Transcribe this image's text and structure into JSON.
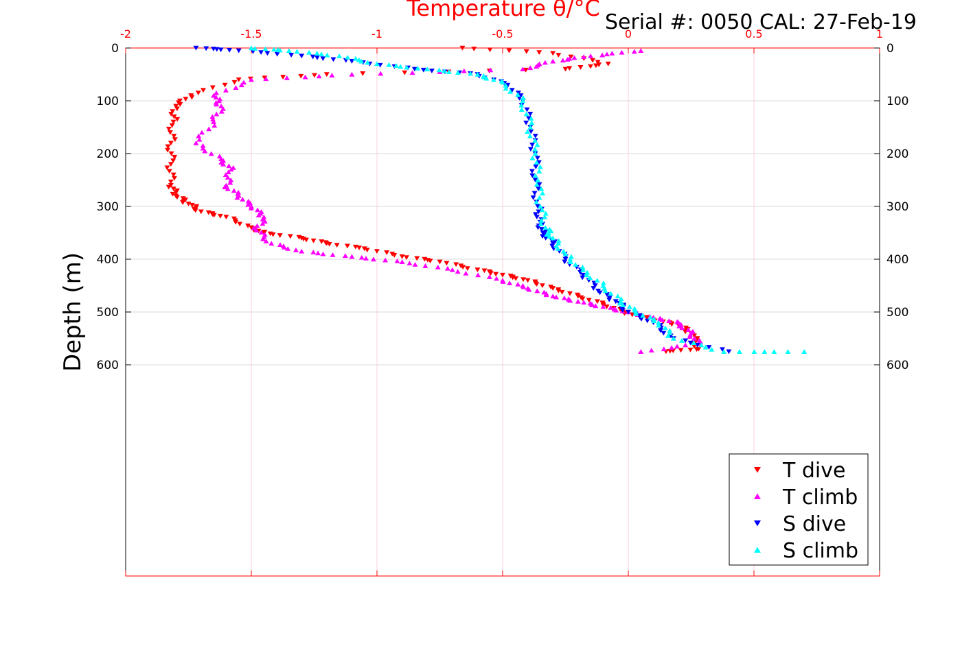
{
  "header": {
    "serial_text": "Serial #: 0050  CAL: 27-Feb-19"
  },
  "chart_data": {
    "type": "scatter",
    "title": "Temperature θ/°C",
    "xlabel": "Temperature θ/°C",
    "ylabel": "Depth (m)",
    "xlim": [
      -2,
      1
    ],
    "ylim": [
      0,
      1000
    ],
    "y_reversed": true,
    "x_axis_position": "top",
    "x_ticks": [
      -2,
      -1.5,
      -1,
      -0.5,
      0,
      0.5,
      1
    ],
    "x_tick_labels": [
      "-2",
      "-1.5",
      "-1",
      "-0.5",
      "0",
      "0.5",
      "1"
    ],
    "y_ticks": [
      0,
      100,
      200,
      300,
      400,
      500,
      600
    ],
    "y_tick_labels": [
      "0",
      "100",
      "200",
      "300",
      "400",
      "500",
      "600"
    ],
    "grid": true,
    "legend_position": "bottom-right",
    "colors": {
      "axis_x": "#ff0000",
      "axis_y": "#000000",
      "grid": "#d9d9d9"
    },
    "series": [
      {
        "name": "T dive",
        "color": "#ff0000",
        "marker": "triangle-down",
        "x": [
          -0.66,
          -0.3,
          -0.08,
          -0.25,
          -1.2,
          -1.55,
          -1.74,
          -1.8,
          -1.81,
          -1.82,
          -1.82,
          -1.82,
          -1.8,
          -1.75,
          -1.7,
          -1.6,
          -1.5,
          -1.45,
          -1.3,
          -1.2,
          -1.05,
          -0.9,
          -0.75,
          -0.6,
          -0.5,
          -0.4,
          -0.3,
          -0.2,
          -0.1,
          -0.02,
          0.1,
          0.2,
          0.25,
          0.28,
          0.15
        ],
        "y": [
          0,
          10,
          30,
          40,
          50,
          60,
          90,
          110,
          140,
          180,
          220,
          260,
          280,
          295,
          310,
          320,
          340,
          350,
          360,
          370,
          380,
          395,
          405,
          420,
          430,
          440,
          455,
          470,
          485,
          500,
          515,
          525,
          540,
          570,
          575
        ]
      },
      {
        "name": "T climb",
        "color": "#ff00ff",
        "marker": "triangle-up",
        "x": [
          0.05,
          -0.15,
          -0.3,
          -0.42,
          -1.1,
          -1.5,
          -1.65,
          -1.62,
          -1.65,
          -1.72,
          -1.62,
          -1.58,
          -1.6,
          -1.55,
          -1.5,
          -1.45,
          -1.48,
          -1.42,
          -1.3,
          -1.1,
          -0.9,
          -0.7,
          -0.5,
          -0.4,
          -0.3,
          -0.2,
          -0.1,
          0.0,
          0.1,
          0.2,
          0.25,
          0.28,
          0.05
        ],
        "y": [
          5,
          15,
          25,
          40,
          50,
          60,
          90,
          110,
          140,
          180,
          210,
          230,
          260,
          280,
          300,
          320,
          345,
          370,
          385,
          395,
          405,
          420,
          440,
          455,
          470,
          480,
          490,
          500,
          510,
          520,
          540,
          560,
          575
        ]
      },
      {
        "name": "S dive",
        "color": "#0000ff",
        "marker": "triangle-down",
        "x": [
          -1.72,
          -1.55,
          -1.3,
          -1.1,
          -0.85,
          -0.6,
          -0.48,
          -0.42,
          -0.39,
          -0.37,
          -0.37,
          -0.36,
          -0.35,
          -0.34,
          -0.3,
          -0.25,
          -0.18,
          -0.12,
          -0.05,
          0.0,
          0.1,
          0.18,
          0.4
        ],
        "y": [
          0,
          5,
          15,
          25,
          40,
          50,
          70,
          100,
          150,
          200,
          250,
          300,
          330,
          350,
          370,
          400,
          430,
          460,
          480,
          500,
          520,
          550,
          575
        ]
      },
      {
        "name": "S climb",
        "color": "#00ffff",
        "marker": "triangle-up",
        "x": [
          -1.5,
          -1.35,
          -1.15,
          -1.0,
          -0.8,
          -0.6,
          -0.5,
          -0.42,
          -0.39,
          -0.37,
          -0.36,
          -0.35,
          -0.33,
          -0.3,
          -0.25,
          -0.18,
          -0.1,
          -0.03,
          0.03,
          0.12,
          0.18,
          0.38,
          0.7
        ],
        "y": [
          0,
          5,
          15,
          30,
          40,
          50,
          65,
          100,
          150,
          200,
          250,
          300,
          340,
          360,
          390,
          420,
          450,
          480,
          500,
          520,
          550,
          575,
          575
        ]
      }
    ]
  }
}
